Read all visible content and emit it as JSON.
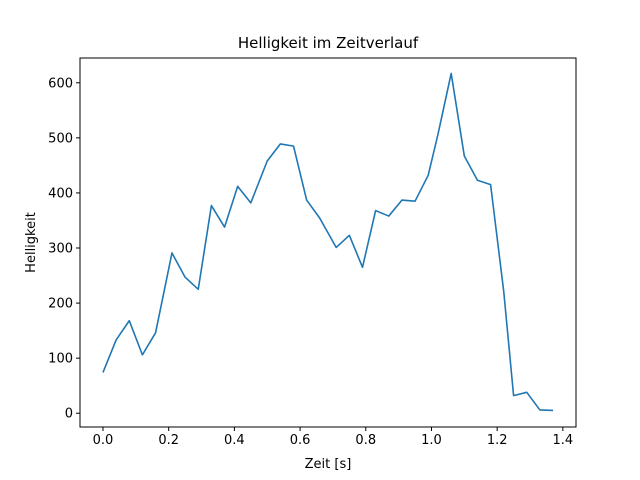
{
  "chart_data": {
    "type": "line",
    "title": "Helligkeit im Zeitverlauf",
    "xlabel": "Zeit [s]",
    "ylabel": "Helligkeit",
    "xlim": [
      -0.07,
      1.44
    ],
    "ylim": [
      -25,
      645
    ],
    "xticks": [
      0.0,
      0.2,
      0.4,
      0.6,
      0.8,
      1.0,
      1.2,
      1.4
    ],
    "xtick_labels": [
      "0.0",
      "0.2",
      "0.4",
      "0.6",
      "0.8",
      "1.0",
      "1.2",
      "1.4"
    ],
    "yticks": [
      0,
      100,
      200,
      300,
      400,
      500,
      600
    ],
    "ytick_labels": [
      "0",
      "100",
      "200",
      "300",
      "400",
      "500",
      "600"
    ],
    "grid": false,
    "legend": "none",
    "series": [
      {
        "color": "#1f77b4",
        "x": [
          0.0,
          0.04,
          0.08,
          0.12,
          0.16,
          0.21,
          0.25,
          0.29,
          0.33,
          0.37,
          0.41,
          0.45,
          0.5,
          0.54,
          0.58,
          0.62,
          0.66,
          0.71,
          0.75,
          0.79,
          0.83,
          0.87,
          0.91,
          0.95,
          0.99,
          1.02,
          1.06,
          1.1,
          1.14,
          1.18,
          1.22,
          1.25,
          1.29,
          1.33,
          1.37
        ],
        "values": [
          74,
          133,
          168,
          106,
          146,
          291,
          247,
          225,
          377,
          338,
          412,
          382,
          458,
          489,
          485,
          387,
          354,
          301,
          323,
          265,
          368,
          358,
          387,
          385,
          432,
          507,
          617,
          467,
          423,
          415,
          221,
          32,
          38,
          6,
          5
        ]
      }
    ]
  }
}
